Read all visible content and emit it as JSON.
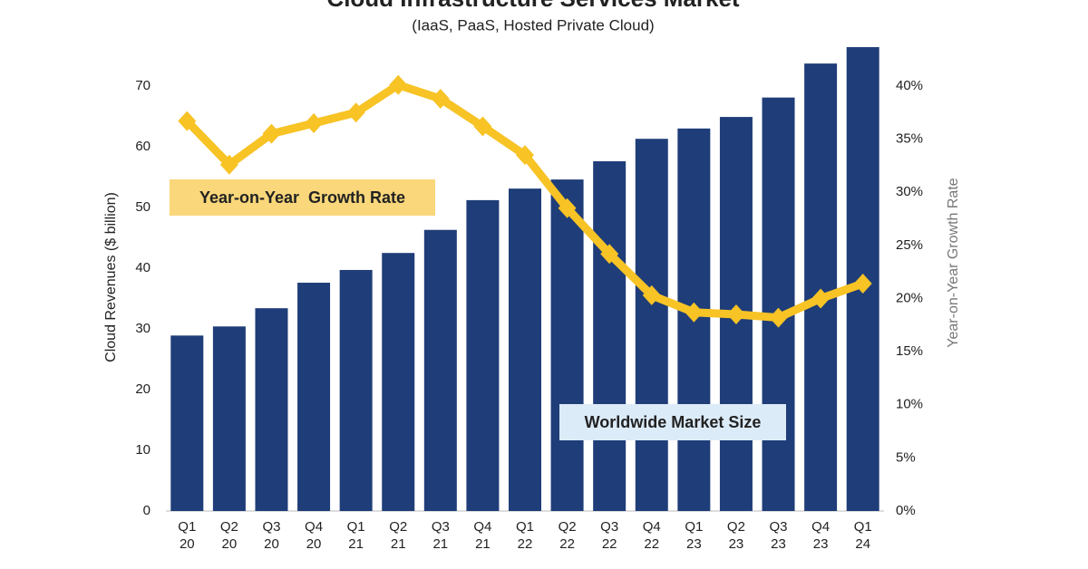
{
  "chart_data": {
    "type": "bar-line",
    "title": "Cloud Infrastructure Services Market",
    "subtitle": "(IaaS, PaaS, Hosted Private Cloud)",
    "y_label": "Cloud Revenues ($ billion)",
    "y2_label": "Year-on-Year Growth Rate",
    "annotations": [
      "Year-on-Year  Growth Rate",
      "Worldwide Market Size"
    ],
    "categories": [
      [
        "Q1",
        "20"
      ],
      [
        "Q2",
        "20"
      ],
      [
        "Q3",
        "20"
      ],
      [
        "Q4",
        "20"
      ],
      [
        "Q1",
        "21"
      ],
      [
        "Q2",
        "21"
      ],
      [
        "Q3",
        "21"
      ],
      [
        "Q4",
        "21"
      ],
      [
        "Q1",
        "22"
      ],
      [
        "Q2",
        "22"
      ],
      [
        "Q3",
        "22"
      ],
      [
        "Q4",
        "22"
      ],
      [
        "Q1",
        "23"
      ],
      [
        "Q2",
        "23"
      ],
      [
        "Q3",
        "23"
      ],
      [
        "Q4",
        "23"
      ],
      [
        "Q1",
        "24"
      ]
    ],
    "series": [
      {
        "name": "Worldwide Market Size",
        "type": "bar",
        "color": "#1f3d78",
        "values": [
          28.9,
          30.4,
          33.4,
          37.6,
          39.7,
          42.5,
          46.3,
          51.2,
          53.1,
          54.6,
          57.6,
          61.3,
          63.0,
          64.9,
          68.1,
          73.7,
          76.4
        ]
      },
      {
        "name": "Year-on-Year Growth Rate",
        "type": "line",
        "axis": "y2",
        "color": "#f7c325",
        "values": [
          36.7,
          32.6,
          35.5,
          36.5,
          37.5,
          40.1,
          38.8,
          36.2,
          33.5,
          28.5,
          24.2,
          20.3,
          18.7,
          18.5,
          18.2,
          20.0,
          21.4
        ]
      }
    ],
    "ylim": [
      0,
      77
    ],
    "yticks": [
      0,
      10,
      20,
      30,
      40,
      50,
      60,
      70
    ],
    "y2lim": [
      0,
      44
    ],
    "y2ticks": [
      {
        "value": 0,
        "label": "0%"
      },
      {
        "value": 5,
        "label": "5%"
      },
      {
        "value": 10,
        "label": "10%"
      },
      {
        "value": 15,
        "label": "15%"
      },
      {
        "value": 20,
        "label": "20%"
      },
      {
        "value": 25,
        "label": "25%"
      },
      {
        "value": 30,
        "label": "30%"
      },
      {
        "value": 35,
        "label": "35%"
      },
      {
        "value": 40,
        "label": "40%"
      }
    ],
    "grid": false
  }
}
